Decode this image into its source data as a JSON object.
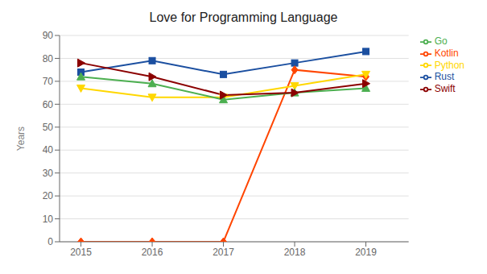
{
  "chart_data": {
    "type": "line",
    "title": "Love for Programming Language",
    "y_label": "Years",
    "x": [
      2015,
      2016,
      2017,
      2018,
      2019
    ],
    "series": [
      {
        "name": "Rust",
        "color": "#1b4fa0",
        "marker": "square",
        "values": [
          74,
          79,
          73,
          78,
          83
        ]
      },
      {
        "name": "Kotlin",
        "color": "#ff4500",
        "marker": "diamond",
        "values": [
          0,
          0,
          0,
          75,
          72
        ]
      },
      {
        "name": "Python",
        "color": "#ffd700",
        "marker": "triangle_down",
        "values": [
          67,
          63,
          63,
          68,
          73
        ]
      },
      {
        "name": "Go",
        "color": "#4caf50",
        "marker": "triangle_up",
        "values": [
          72,
          69,
          62,
          65,
          67
        ]
      },
      {
        "name": "Swift",
        "color": "#8b0000",
        "marker": "triangle_right",
        "values": [
          78,
          72,
          64,
          65,
          69
        ]
      }
    ],
    "xlim": [
      2014.7,
      2019.6
    ],
    "xticks": [
      2015,
      2016,
      2017,
      2018,
      2019
    ],
    "ylim": [
      0,
      90
    ],
    "yticks": [
      0,
      10,
      20,
      30,
      40,
      50,
      60,
      70,
      80,
      90
    ],
    "grid": true,
    "legend": "right"
  }
}
